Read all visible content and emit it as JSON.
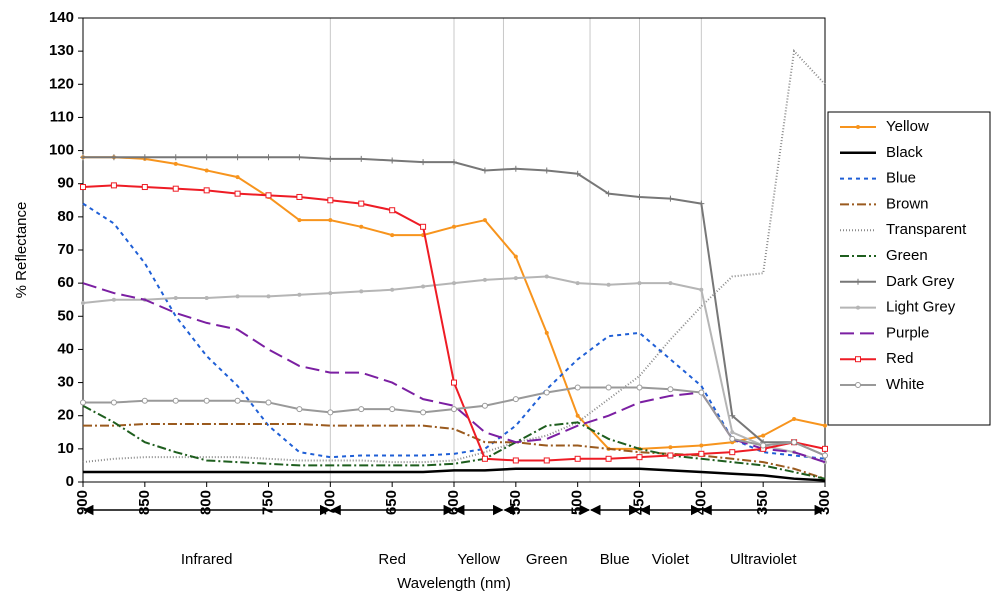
{
  "chart_data": {
    "type": "line",
    "x_label": "Wavelength (nm)",
    "y_label": "% Reflectance",
    "x": [
      900,
      875,
      850,
      825,
      800,
      775,
      750,
      725,
      700,
      675,
      650,
      625,
      600,
      575,
      550,
      525,
      500,
      475,
      450,
      425,
      400,
      375,
      350,
      325,
      300
    ],
    "xlim": [
      900,
      300
    ],
    "xticks": [
      900,
      850,
      800,
      750,
      700,
      650,
      600,
      550,
      500,
      450,
      400,
      350,
      300
    ],
    "ylim": [
      0,
      140
    ],
    "yticks": [
      0,
      10,
      20,
      30,
      40,
      50,
      60,
      70,
      80,
      90,
      100,
      110,
      120,
      130,
      140
    ],
    "regions": [
      {
        "label": "Infrared",
        "from": 900,
        "to": 700
      },
      {
        "label": "Red",
        "from": 700,
        "to": 600
      },
      {
        "label": "Yellow",
        "from": 600,
        "to": 560
      },
      {
        "label": "Green",
        "from": 560,
        "to": 490
      },
      {
        "label": "Blue",
        "from": 490,
        "to": 450
      },
      {
        "label": "Violet",
        "from": 450,
        "to": 400
      },
      {
        "label": "Ultraviolet",
        "from": 400,
        "to": 300
      }
    ],
    "series": [
      {
        "name": "Yellow",
        "color": "#f7941d",
        "dash": "none",
        "marker": "dot",
        "values": [
          98,
          98,
          97.5,
          96,
          94,
          92,
          86,
          79,
          79,
          77,
          74.5,
          74.5,
          77,
          79,
          68,
          45,
          20,
          10,
          10,
          10.5,
          11,
          12,
          14,
          19,
          17
        ]
      },
      {
        "name": "Black",
        "color": "#000000",
        "dash": "none",
        "marker": "none",
        "values": [
          3,
          3,
          3,
          3,
          3,
          3,
          3,
          3,
          3,
          3,
          3,
          3,
          3.5,
          3.5,
          4,
          4,
          4,
          4,
          4,
          3.5,
          3,
          2.5,
          2,
          1,
          0.5
        ]
      },
      {
        "name": "Blue",
        "color": "#1f5fd6",
        "dash": "4,4",
        "marker": "none",
        "values": [
          84,
          78,
          66,
          50,
          38,
          29,
          17,
          9,
          7.5,
          8,
          8,
          8,
          8.5,
          10,
          17,
          28,
          37,
          44,
          45,
          37,
          29,
          13,
          9,
          8,
          7
        ]
      },
      {
        "name": "Brown",
        "color": "#9a5a1e",
        "dash": "9,3,2,3",
        "marker": "none",
        "values": [
          17,
          17,
          17.5,
          17.5,
          17.5,
          17.5,
          17.5,
          17.5,
          17,
          17,
          17,
          17,
          16,
          12,
          12,
          11,
          11,
          10,
          9,
          8.5,
          8,
          7,
          6,
          4,
          1
        ]
      },
      {
        "name": "Transparent",
        "color": "#8a8a8a",
        "dash": "1,2",
        "marker": "none",
        "values": [
          6,
          7,
          7.5,
          7.5,
          7.5,
          7.5,
          7,
          6.5,
          6.5,
          6.5,
          6,
          6,
          6.5,
          9,
          12,
          14,
          18,
          25,
          32,
          43,
          53,
          62,
          63,
          130,
          120
        ]
      },
      {
        "name": "Green",
        "color": "#1e5e1e",
        "dash": "9,3,2,3",
        "marker": "none",
        "values": [
          23,
          18,
          12,
          9,
          6.5,
          6,
          5.5,
          5,
          5,
          5,
          5,
          5,
          5.5,
          7,
          12,
          17,
          18,
          13,
          10,
          8,
          7,
          6,
          5,
          3,
          1
        ]
      },
      {
        "name": "Dark Grey",
        "color": "#777777",
        "dash": "none",
        "marker": "plus",
        "values": [
          98,
          98,
          98,
          98,
          98,
          98,
          98,
          98,
          97.5,
          97.5,
          97,
          96.5,
          96.5,
          94,
          94.5,
          94,
          93,
          87,
          86,
          85.5,
          84,
          20,
          12,
          12,
          8
        ]
      },
      {
        "name": "Light Grey",
        "color": "#b5b5b5",
        "dash": "none",
        "marker": "dot",
        "values": [
          54,
          55,
          55,
          55.5,
          55.5,
          56,
          56,
          56.5,
          57,
          57.5,
          58,
          59,
          60,
          61,
          61.5,
          62,
          60,
          59.5,
          60,
          60,
          58,
          15,
          11,
          9,
          6
        ]
      },
      {
        "name": "Purple",
        "color": "#7b1fa2",
        "dash": "14,6",
        "marker": "none",
        "values": [
          60,
          57,
          55,
          51,
          48,
          46,
          40,
          35,
          33,
          33,
          30,
          25,
          23,
          15,
          12,
          13,
          17,
          20,
          24,
          26,
          27,
          13,
          10,
          9,
          6
        ]
      },
      {
        "name": "Red",
        "color": "#ee1c25",
        "dash": "none",
        "marker": "square",
        "values": [
          89,
          89.5,
          89,
          88.5,
          88,
          87,
          86.5,
          86,
          85,
          84,
          82,
          77,
          30,
          7,
          6.5,
          6.5,
          7,
          7,
          7.5,
          8,
          8.5,
          9,
          10,
          12,
          10
        ]
      },
      {
        "name": "White",
        "color": "#999999",
        "dash": "none",
        "marker": "circle",
        "values": [
          24,
          24,
          24.5,
          24.5,
          24.5,
          24.5,
          24,
          22,
          21,
          22,
          22,
          21,
          22,
          23,
          25,
          27,
          28.5,
          28.5,
          28.5,
          28,
          27,
          13,
          11,
          12,
          8
        ]
      }
    ]
  }
}
